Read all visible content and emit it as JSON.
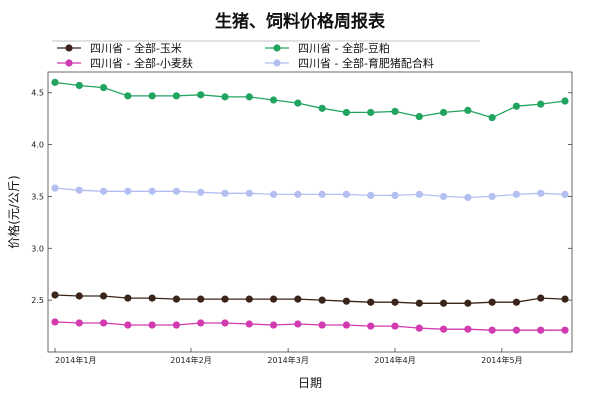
{
  "chart_data": {
    "type": "line",
    "title": "生猪、饲料价格周报表",
    "xlabel": "日期",
    "ylabel": "价格(元/公斤)",
    "x_ticks": [
      "2014年1月",
      "2014年2月",
      "2014年3月",
      "2014年4月",
      "2014年5月"
    ],
    "x_tick_weeks": [
      0,
      5.6,
      9.6,
      14,
      18.4
    ],
    "xlim": [
      0,
      22
    ],
    "ylim": [
      2.0,
      4.7
    ],
    "y_ticks": [
      "2.5",
      "3.0",
      "3.5",
      "4.0",
      "4.5"
    ],
    "grid": false,
    "legend_position": "top",
    "series": [
      {
        "name": "四川省 - 全部-玉米",
        "color": "#3b241a",
        "values": [
          2.55,
          2.54,
          2.54,
          2.52,
          2.52,
          2.51,
          2.51,
          2.51,
          2.51,
          2.51,
          2.51,
          2.5,
          2.49,
          2.48,
          2.48,
          2.47,
          2.47,
          2.47,
          2.48,
          2.48,
          2.52,
          2.51
        ]
      },
      {
        "name": "四川省 - 全部-豆粕",
        "color": "#21a45f",
        "values": [
          4.6,
          4.57,
          4.55,
          4.47,
          4.47,
          4.47,
          4.48,
          4.46,
          4.46,
          4.43,
          4.4,
          4.35,
          4.31,
          4.31,
          4.32,
          4.27,
          4.31,
          4.33,
          4.26,
          4.37,
          4.39,
          4.42
        ]
      },
      {
        "name": "四川省 - 全部-小麦麸",
        "color": "#d13ab0",
        "values": [
          2.29,
          2.28,
          2.28,
          2.26,
          2.26,
          2.26,
          2.28,
          2.28,
          2.27,
          2.26,
          2.27,
          2.26,
          2.26,
          2.25,
          2.25,
          2.23,
          2.22,
          2.22,
          2.21,
          2.21,
          2.21,
          2.21
        ]
      },
      {
        "name": "四川省 - 全部-育肥猪配合料",
        "color": "#b3bff0",
        "values": [
          3.58,
          3.56,
          3.55,
          3.55,
          3.55,
          3.55,
          3.54,
          3.53,
          3.53,
          3.52,
          3.52,
          3.52,
          3.52,
          3.51,
          3.51,
          3.52,
          3.5,
          3.49,
          3.5,
          3.52,
          3.53,
          3.52
        ]
      }
    ]
  }
}
